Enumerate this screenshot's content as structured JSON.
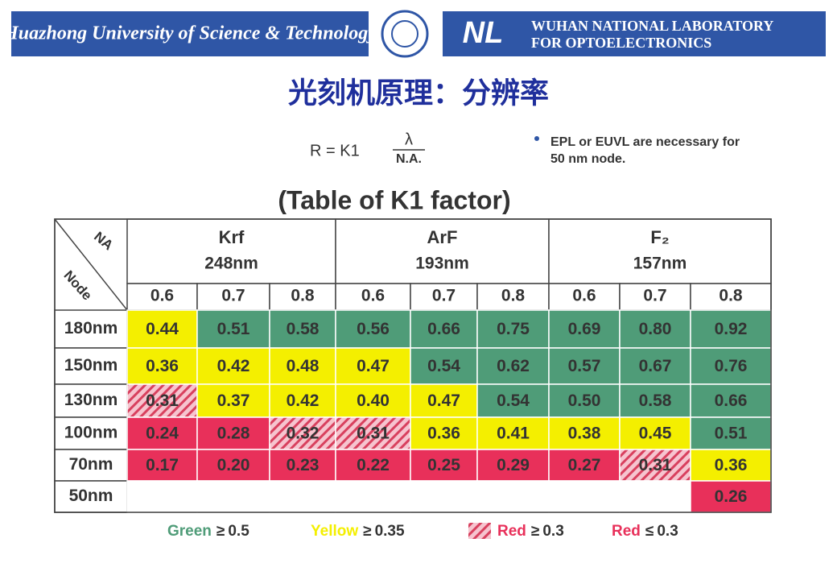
{
  "header": {
    "university": "Huazhong University of Science & Technology",
    "lab_logo": "NL",
    "lab_name": [
      "WUHAN NATIONAL LABORATORY",
      "FOR OPTOELECTRONICS"
    ]
  },
  "title": "光刻机原理：分辨率",
  "formula": {
    "lhs": "R = K1",
    "numerator": "λ",
    "denominator": "N.A."
  },
  "note": [
    "EPL or EUVL are necessary for",
    "50 nm node."
  ],
  "table": {
    "title": "(Table of K1 factor)",
    "corner": {
      "top": "NA",
      "bottom": "Node"
    },
    "groups": [
      {
        "name": "Krf",
        "wavelength": "248nm"
      },
      {
        "name": "ArF",
        "wavelength": "193nm"
      },
      {
        "name": "F₂",
        "wavelength": "157nm"
      }
    ],
    "na": [
      "0.6",
      "0.7",
      "0.8",
      "0.6",
      "0.7",
      "0.8",
      "0.6",
      "0.7",
      "0.8"
    ],
    "rows": [
      {
        "node": "180nm",
        "values": [
          "0.44",
          "0.51",
          "0.58",
          "0.56",
          "0.66",
          "0.75",
          "0.69",
          "0.80",
          "0.92"
        ]
      },
      {
        "node": "150nm",
        "values": [
          "0.36",
          "0.42",
          "0.48",
          "0.47",
          "0.54",
          "0.62",
          "0.57",
          "0.67",
          "0.76"
        ]
      },
      {
        "node": "130nm",
        "values": [
          "0.31",
          "0.37",
          "0.42",
          "0.40",
          "0.47",
          "0.54",
          "0.50",
          "0.58",
          "0.66"
        ]
      },
      {
        "node": "100nm",
        "values": [
          "0.24",
          "0.28",
          "0.32",
          "0.31",
          "0.36",
          "0.41",
          "0.38",
          "0.45",
          "0.51"
        ]
      },
      {
        "node": "70nm",
        "values": [
          "0.17",
          "0.20",
          "0.23",
          "0.22",
          "0.25",
          "0.29",
          "0.27",
          "0.31",
          "0.36"
        ]
      },
      {
        "node": "50nm",
        "values": [
          null,
          null,
          null,
          null,
          null,
          null,
          null,
          null,
          "0.26"
        ]
      }
    ]
  },
  "legend": [
    {
      "name": "Green",
      "op": "≥",
      "threshold": 0.5,
      "color": "#4f9c78"
    },
    {
      "name": "Yellow",
      "op": "≥",
      "threshold": 0.35,
      "color": "#f4ef00"
    },
    {
      "name": "Red",
      "op": "≥",
      "threshold": 0.3,
      "color": "#e8305a",
      "hatch": true
    },
    {
      "name": "Red",
      "op": "≤",
      "threshold": 0.3,
      "color": "#e8305a"
    }
  ]
}
